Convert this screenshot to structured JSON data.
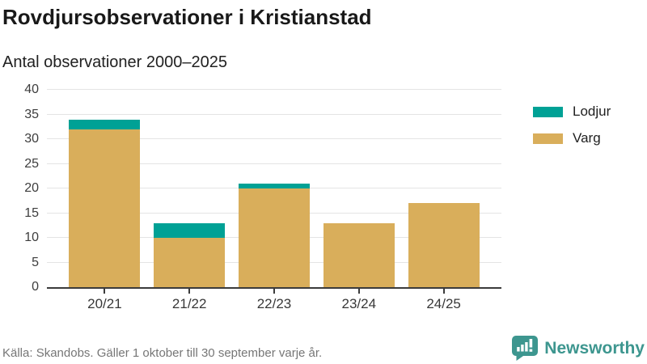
{
  "header": {
    "title": "Rovdjursobservationer i Kristianstad",
    "subtitle": "Antal observationer 2000–2025"
  },
  "chart_data": {
    "type": "bar",
    "stacked": true,
    "categories": [
      "20/21",
      "21/22",
      "22/23",
      "23/24",
      "24/25"
    ],
    "series": [
      {
        "name": "Lodjur",
        "color": "#00a195",
        "values": [
          2,
          3,
          1,
          0,
          0
        ]
      },
      {
        "name": "Varg",
        "color": "#d9ae5b",
        "values": [
          32,
          10,
          20,
          13,
          17
        ]
      }
    ],
    "totals": [
      34,
      13,
      21,
      13,
      17
    ],
    "title": "Rovdjursobservationer i Kristianstad",
    "subtitle": "Antal observationer 2000–2025",
    "xlabel": "",
    "ylabel": "",
    "ylim": [
      0,
      40
    ],
    "yticks": [
      0,
      5,
      10,
      15,
      20,
      25,
      30,
      35,
      40
    ],
    "grid": true,
    "legend_position": "right"
  },
  "footer": {
    "source": "Källa: Skandobs. Gäller 1 oktober till 30 september varje år.",
    "brand": "Newsworthy"
  },
  "colors": {
    "lodjur_teal": "#00a195",
    "varg_gold": "#d9ae5b",
    "brand_teal": "#3d968f",
    "axis": "#3b3b3b",
    "grid": "#e4e4e4",
    "source_gray": "#767676"
  },
  "icons": {
    "brand_icon": "newsworthy-speech-bubble-bar-chart-icon"
  }
}
